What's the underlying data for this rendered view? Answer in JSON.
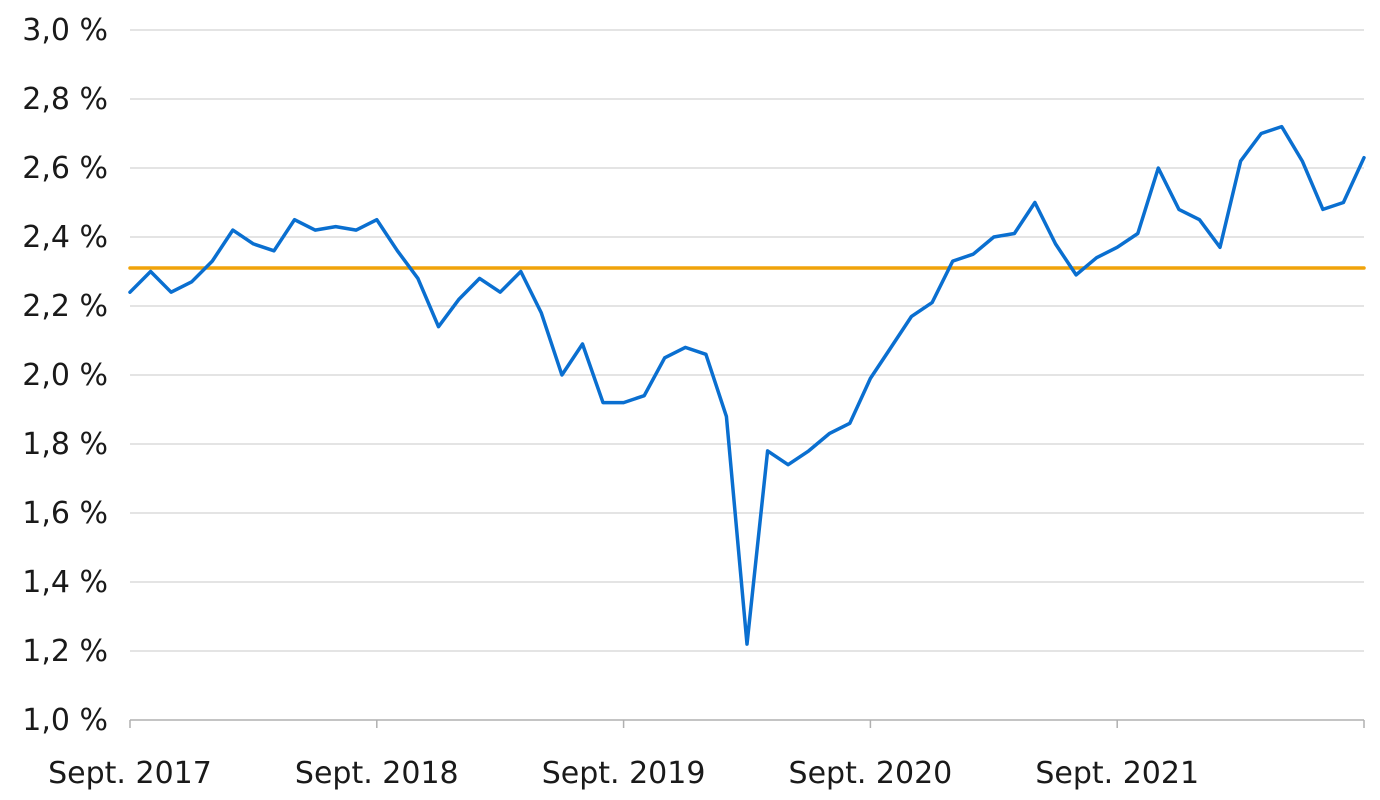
{
  "chart_data": {
    "type": "line",
    "title": "",
    "xlabel": "",
    "ylabel": "",
    "y_tick_labels": [
      "1,0 %",
      "1,2 %",
      "1,4 %",
      "1,6 %",
      "1,8 %",
      "2,0 %",
      "2,2 %",
      "2,4 %",
      "2,6 %",
      "2,8 %",
      "3,0 %"
    ],
    "y_ticks": [
      1.0,
      1.2,
      1.4,
      1.6,
      1.8,
      2.0,
      2.2,
      2.4,
      2.6,
      2.8,
      3.0
    ],
    "ylim": [
      1.0,
      3.0
    ],
    "x_tick_labels": [
      "Sept. 2017",
      "Sept. 2018",
      "Sept. 2019",
      "Sept. 2020",
      "Sept. 2021"
    ],
    "x_ticks": [
      "2017-09",
      "2018-09",
      "2019-09",
      "2020-09",
      "2021-09"
    ],
    "xlim": [
      "2017-09",
      "2022-09"
    ],
    "grid": true,
    "legend": "none",
    "series": [
      {
        "color": "#0a6fd0",
        "x": [
          "2017-09",
          "2017-10",
          "2017-11",
          "2017-12",
          "2018-01",
          "2018-02",
          "2018-03",
          "2018-04",
          "2018-05",
          "2018-06",
          "2018-07",
          "2018-08",
          "2018-09",
          "2018-10",
          "2018-11",
          "2018-12",
          "2019-01",
          "2019-02",
          "2019-03",
          "2019-04",
          "2019-05",
          "2019-06",
          "2019-07",
          "2019-08",
          "2019-09",
          "2019-10",
          "2019-11",
          "2019-12",
          "2020-01",
          "2020-02",
          "2020-03",
          "2020-04",
          "2020-05",
          "2020-06",
          "2020-07",
          "2020-08",
          "2020-09",
          "2020-10",
          "2020-11",
          "2020-12",
          "2021-01",
          "2021-02",
          "2021-03",
          "2021-04",
          "2021-05",
          "2021-06",
          "2021-07",
          "2021-08",
          "2021-09",
          "2021-10",
          "2021-11",
          "2021-12",
          "2022-01",
          "2022-02",
          "2022-03",
          "2022-04",
          "2022-05",
          "2022-06",
          "2022-07",
          "2022-08",
          "2022-09"
        ],
        "values": [
          2.24,
          2.3,
          2.24,
          2.27,
          2.33,
          2.42,
          2.38,
          2.36,
          2.45,
          2.42,
          2.43,
          2.42,
          2.45,
          2.36,
          2.28,
          2.14,
          2.22,
          2.28,
          2.24,
          2.3,
          2.18,
          2.0,
          2.09,
          1.92,
          1.92,
          1.94,
          2.05,
          2.08,
          2.06,
          1.88,
          1.22,
          1.78,
          1.74,
          1.78,
          1.83,
          1.86,
          1.99,
          2.08,
          2.17,
          2.21,
          2.33,
          2.35,
          2.4,
          2.41,
          2.5,
          2.38,
          2.29,
          2.34,
          2.37,
          2.41,
          2.6,
          2.48,
          2.45,
          2.37,
          2.62,
          2.7,
          2.72,
          2.62,
          2.48,
          2.5,
          2.63
        ]
      },
      {
        "color": "#f0a30a",
        "x": [
          "2017-09",
          "2022-09"
        ],
        "values": [
          2.31,
          2.31
        ]
      }
    ]
  }
}
